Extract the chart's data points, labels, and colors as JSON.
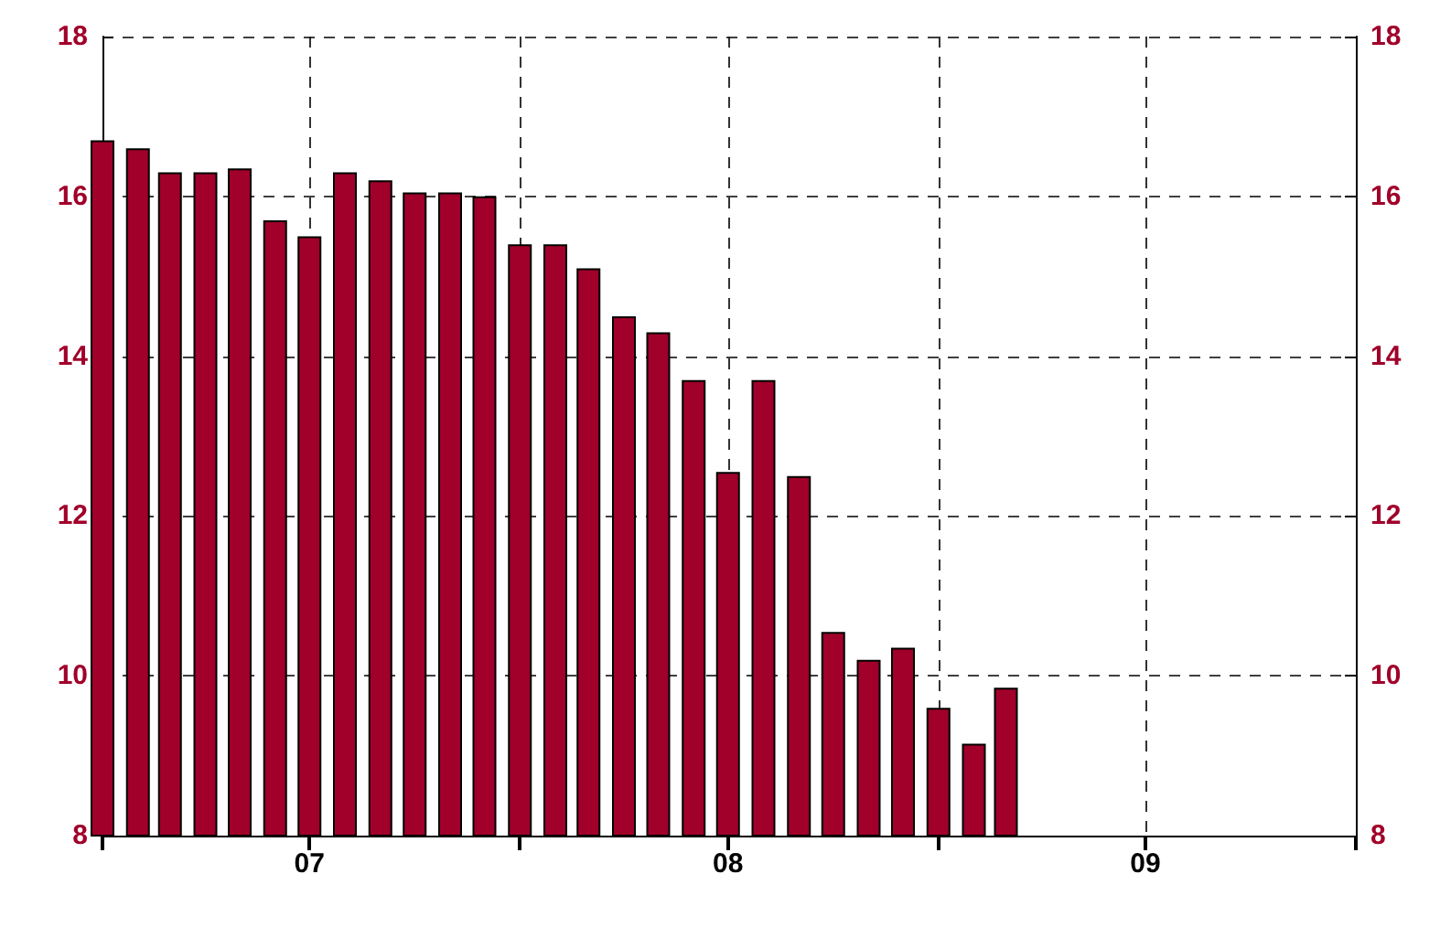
{
  "chart_data": {
    "type": "bar",
    "x": [
      "2007-01",
      "2007-02",
      "2007-03",
      "2007-04",
      "2007-05",
      "2007-06",
      "2007-07",
      "2007-08",
      "2007-09",
      "2007-10",
      "2007-11",
      "2007-12",
      "2008-01",
      "2008-02",
      "2008-03",
      "2008-04",
      "2008-05",
      "2008-06",
      "2008-07",
      "2008-08",
      "2008-09",
      "2008-10",
      "2008-11",
      "2008-12",
      "2009-01",
      "2009-02",
      "2009-03"
    ],
    "values": [
      16.7,
      16.6,
      16.3,
      16.3,
      16.35,
      15.7,
      15.5,
      16.3,
      16.2,
      16.05,
      16.05,
      16.0,
      15.4,
      15.4,
      15.1,
      14.5,
      14.3,
      13.7,
      12.55,
      13.7,
      12.5,
      10.55,
      10.2,
      10.35,
      9.6,
      9.15,
      9.85
    ],
    "color": "#a0002a",
    "xlim": [
      "2007-01",
      "2010-01"
    ],
    "xticks": [
      {
        "value": "2007-01",
        "label": null
      },
      {
        "value": "2007-07",
        "label": "07"
      },
      {
        "value": "2008-01",
        "label": null
      },
      {
        "value": "2008-07",
        "label": "08"
      },
      {
        "value": "2009-01",
        "label": null
      },
      {
        "value": "2009-07",
        "label": "09"
      },
      {
        "value": "2010-01",
        "label": null
      }
    ],
    "ylim": [
      8,
      18
    ],
    "yticks": [
      8,
      10,
      12,
      14,
      16,
      18
    ],
    "y2lim": [
      8,
      18
    ],
    "y2ticks": [
      8,
      10,
      12,
      14,
      16,
      18
    ],
    "grid": true
  }
}
